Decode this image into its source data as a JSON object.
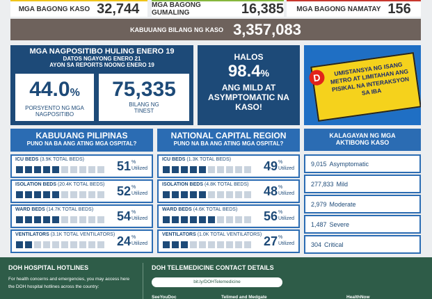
{
  "stats": [
    {
      "label": "MGA BAGONG KASO",
      "value": "32,744"
    },
    {
      "label": "MGA BAGONG GUMALING",
      "value": "16,385"
    },
    {
      "label": "MGA BAGONG NAMATAY",
      "value": "156"
    }
  ],
  "total": {
    "label": "KABUUANG BILANG NG KASO",
    "value": "3,357,083"
  },
  "positivity": {
    "title": "MGA NAGPOSITIBO HULING ENERO 19",
    "subtitle_1": "DATOS NGAYONG ENERO 21",
    "subtitle_2": "AYON SA REPORTS NOONG ENERO 19",
    "rate": "44.0",
    "rate_unit": "%",
    "rate_label": "PORSYENTO NG MGA NAGPOSITIBO",
    "tested": "75,335",
    "tested_label": "BILANG NG TINEST"
  },
  "mild": {
    "prefix": "HALOS",
    "value": "98.4",
    "unit": "%",
    "text": "ANG MILD AT ASYMPTOMATIC NA KASO!"
  },
  "reminder": {
    "initial": "D",
    "text": "UMISTANSYA NG ISANG METRO AT LIMITAHAN ANG PISIKAL NA INTERAKSYON SA IBA"
  },
  "hospitals": [
    {
      "title": "KABUUANG PILIPINAS",
      "subtitle": "PUNO NA BA ANG ATING MGA OSPITAL?",
      "rows": [
        {
          "name": "ICU BEDS",
          "capacity": "(3.9K TOTAL BEDS)",
          "utilization": 51,
          "unit": "%",
          "status": "Utilized"
        },
        {
          "name": "ISOLATION BEDS",
          "capacity": "(20.4K TOTAL BEDS)",
          "utilization": 52,
          "unit": "%",
          "status": "Utilized"
        },
        {
          "name": "WARD BEDS",
          "capacity": "(14.7K TOTAL BEDS)",
          "utilization": 54,
          "unit": "%",
          "status": "Utilized"
        },
        {
          "name": "VENTILATORS",
          "capacity": "(3.1K TOTAL VENTILATORS)",
          "utilization": 24,
          "unit": "%",
          "status": "Utilized"
        }
      ]
    },
    {
      "title": "NATIONAL CAPITAL REGION",
      "subtitle": "PUNO NA BA ANG ATING MGA OSPITAL?",
      "rows": [
        {
          "name": "ICU BEDS",
          "capacity": "(1.3K TOTAL BEDS)",
          "utilization": 49,
          "unit": "%",
          "status": "Utilized"
        },
        {
          "name": "ISOLATION BEDS",
          "capacity": "(4.8K TOTAL BEDS)",
          "utilization": 48,
          "unit": "%",
          "status": "Utilized"
        },
        {
          "name": "WARD BEDS",
          "capacity": "(4.6K TOTAL BEDS)",
          "utilization": 56,
          "unit": "%",
          "status": "Utilized"
        },
        {
          "name": "VENTILATORS",
          "capacity": "(1.0K TOTAL VENTILATORS)",
          "utilization": 27,
          "unit": "%",
          "status": "Utilized"
        }
      ]
    }
  ],
  "active_cases": {
    "title": "KALAGAYAN NG MGA AKTIBONG KASO",
    "rows": [
      {
        "count": "9,015",
        "status": "Asymptomatic"
      },
      {
        "count": "277,833",
        "status": "Mild"
      },
      {
        "count": "2,979",
        "status": "Moderate"
      },
      {
        "count": "1,487",
        "status": "Severe"
      },
      {
        "count": "304",
        "status": "Critical"
      }
    ]
  },
  "footer": {
    "hotlines_title": "DOH HOSPITAL HOTLINES",
    "hotlines_text": "For health concerns and emergencies, you may access here the DOH hospital hotlines across the country:",
    "telemedicine_title": "DOH TELEMEDICINE CONTACT DETAILS",
    "telemedicine_link": "bit.ly/DOHTelemedicine",
    "providers": [
      "SeeYouDoc",
      "Telimed and Medgate",
      "HealthNow"
    ]
  }
}
